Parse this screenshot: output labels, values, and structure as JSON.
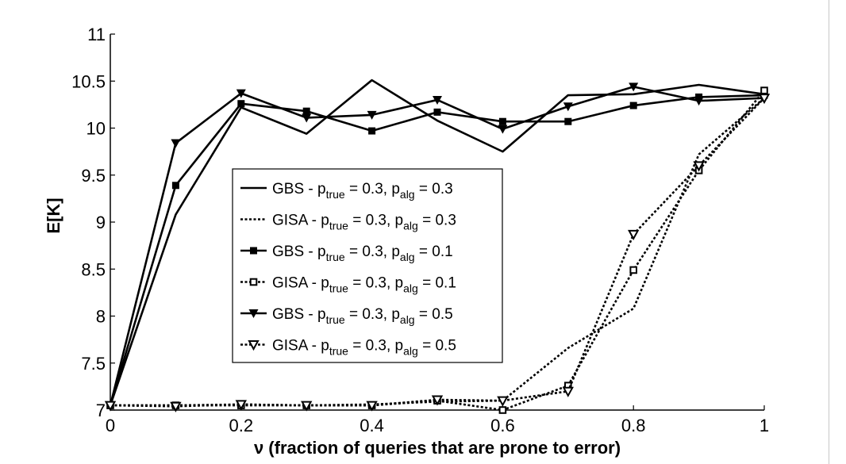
{
  "chart_data": {
    "type": "line",
    "xlabel": "ν (fraction of queries that are prone to error)",
    "ylabel": "E[K]",
    "xlim": [
      0,
      1
    ],
    "ylim": [
      7,
      11
    ],
    "xticks": [
      "0",
      "0.2",
      "0.4",
      "0.6",
      "0.8",
      "1"
    ],
    "yticks": [
      "7",
      "7.5",
      "8",
      "8.5",
      "9",
      "9.5",
      "10",
      "10.5",
      "11"
    ],
    "grid": false,
    "legend_position": "center-left",
    "x": [
      0,
      0.1,
      0.2,
      0.3,
      0.4,
      0.5,
      0.6,
      0.7,
      0.8,
      0.9,
      1.0
    ],
    "series": [
      {
        "name": "GBS - p_true = 0.3, p_alg = 0.3",
        "legend_parts": [
          "GBS  - p",
          "true",
          " = 0.3, p",
          "alg",
          " = 0.3"
        ],
        "style": "solid",
        "marker": "none",
        "values": [
          7.05,
          9.08,
          10.22,
          9.94,
          10.51,
          10.08,
          9.75,
          10.35,
          10.36,
          10.46,
          10.36
        ]
      },
      {
        "name": "GISA - p_true = 0.3, p_alg = 0.3",
        "legend_parts": [
          "GISA - p",
          "true",
          " = 0.3, p",
          "alg",
          " = 0.3"
        ],
        "style": "dotted",
        "marker": "none",
        "values": [
          7.05,
          7.05,
          7.06,
          7.05,
          7.06,
          7.09,
          7.1,
          7.66,
          8.08,
          9.72,
          10.32
        ]
      },
      {
        "name": "GBS - p_true = 0.3, p_alg = 0.1",
        "legend_parts": [
          "GBS  - p",
          "true",
          " = 0.3, p",
          "alg",
          " = 0.1"
        ],
        "style": "solid",
        "marker": "square",
        "values": [
          7.05,
          9.39,
          10.26,
          10.18,
          9.97,
          10.17,
          10.07,
          10.07,
          10.24,
          10.33,
          10.35
        ]
      },
      {
        "name": "GISA - p_true = 0.3, p_alg = 0.1",
        "legend_parts": [
          "GISA - p",
          "true",
          " = 0.3, p",
          "alg",
          " = 0.1"
        ],
        "style": "dotted",
        "marker": "square-open",
        "values": [
          7.05,
          7.05,
          7.05,
          7.05,
          7.05,
          7.1,
          7.0,
          7.26,
          8.49,
          9.55,
          10.4
        ]
      },
      {
        "name": "GBS - p_true = 0.3, p_alg = 0.5",
        "legend_parts": [
          "GBS  - p",
          "true",
          " = 0.3, p",
          "alg",
          " = 0.5"
        ],
        "style": "solid",
        "marker": "triangle-down",
        "values": [
          7.05,
          9.84,
          10.37,
          10.11,
          10.14,
          10.3,
          9.99,
          10.23,
          10.44,
          10.29,
          10.32
        ]
      },
      {
        "name": "GISA - p_true = 0.3, p_alg = 0.5",
        "legend_parts": [
          "GISA - p",
          "true",
          " = 0.3, p",
          "alg",
          " = 0.5"
        ],
        "style": "dotted",
        "marker": "triangle-down-open",
        "values": [
          7.05,
          7.04,
          7.06,
          7.05,
          7.05,
          7.11,
          7.1,
          7.2,
          8.87,
          9.6,
          10.32
        ]
      }
    ]
  }
}
